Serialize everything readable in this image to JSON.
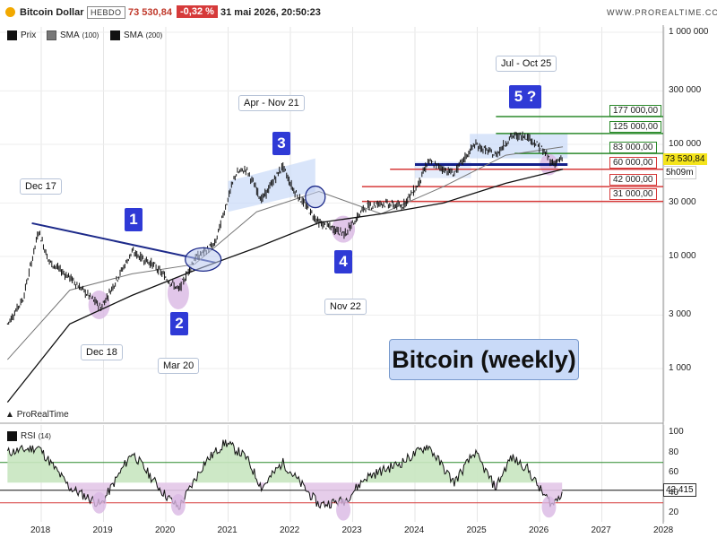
{
  "header": {
    "title": "Bitcoin Dollar",
    "period": "HEBDO",
    "price": "73 530,84",
    "change": "-0,32 %",
    "datetime": "31 mai 2026, 20:50:23",
    "site": "WWW.PROREALTIME.COM"
  },
  "legend": {
    "price": "Prix",
    "sma100_name": "SMA",
    "sma100_param": "(100)",
    "sma200_name": "SMA",
    "sma200_param": "(200)",
    "rsi_name": "RSI",
    "rsi_param": "(14)"
  },
  "watermark": "ProRealTime",
  "big_title": "Bitcoin (weekly)",
  "annotations": {
    "dec17": "Dec 17",
    "dec18": "Dec 18",
    "mar20": "Mar 20",
    "apr_nov21": "Apr - Nov 21",
    "nov22": "Nov 22",
    "jul_oct25": "Jul - Oct 25"
  },
  "waves": {
    "w1": "1",
    "w2": "2",
    "w3": "3",
    "w4": "4",
    "w5": "5 ?"
  },
  "price_tag": "73 530,84",
  "timer_tag": "5h09m",
  "rsi_tag": "42,415",
  "colors": {
    "candles": "#111111",
    "sma100": "#777777",
    "sma200": "#111111",
    "trendline": "#1d2a8a",
    "resistance": "#2b8a2b",
    "support": "#d63a3a",
    "neckline": "#14208a",
    "rsi_fill": "#c8e6c0",
    "rsi_low_fill": "#e3c8e8",
    "highlight": "#c9daf8"
  },
  "chart_data": [
    {
      "type": "line",
      "scale": "log",
      "series": [
        {
          "name": "Prix",
          "x": [
            "2017-06",
            "2017-09",
            "2017-12",
            "2018-02",
            "2018-06",
            "2018-12",
            "2019-06",
            "2019-10",
            "2020-03",
            "2020-06",
            "2020-10",
            "2020-12",
            "2021-02",
            "2021-04",
            "2021-07",
            "2021-11",
            "2022-01",
            "2022-06",
            "2022-11",
            "2023-03",
            "2023-06",
            "2023-10",
            "2024-01",
            "2024-03",
            "2024-08",
            "2024-12",
            "2025-04",
            "2025-07",
            "2025-10",
            "2026-01",
            "2026-03",
            "2026-05"
          ],
          "values": [
            2500,
            4200,
            17000,
            9000,
            6500,
            3500,
            11000,
            8500,
            5000,
            9500,
            13000,
            28000,
            55000,
            60000,
            32000,
            64000,
            40000,
            20000,
            16000,
            28000,
            30000,
            28000,
            43000,
            70000,
            55000,
            100000,
            80000,
            118000,
            120000,
            90000,
            68000,
            73530
          ]
        },
        {
          "name": "SMA (100)",
          "x": [
            "2017-06",
            "2018-06",
            "2019-06",
            "2020-06",
            "2021-06",
            "2022-06",
            "2023-06",
            "2024-06",
            "2025-06",
            "2026-05"
          ],
          "values": [
            1200,
            5000,
            7000,
            8500,
            25000,
            38000,
            24000,
            42000,
            80000,
            95000
          ]
        },
        {
          "name": "SMA (200)",
          "x": [
            "2017-06",
            "2018-06",
            "2019-06",
            "2020-06",
            "2021-06",
            "2022-06",
            "2023-06",
            "2024-06",
            "2025-06",
            "2026-05"
          ],
          "values": [
            500,
            2500,
            4500,
            7500,
            12000,
            20000,
            24000,
            30000,
            45000,
            60000
          ]
        }
      ],
      "y_ticks": [
        "1 000",
        "3 000",
        "10 000",
        "30 000",
        "100 000",
        "300 000",
        "1 000 000"
      ],
      "x_ticks": [
        "2018",
        "2019",
        "2020",
        "2021",
        "2022",
        "2023",
        "2024",
        "2025",
        "2026",
        "2027",
        "2028"
      ],
      "levels": [
        {
          "label": "177 000,00",
          "value": 177000,
          "kind": "resistance"
        },
        {
          "label": "125 000,00",
          "value": 125000,
          "kind": "resistance"
        },
        {
          "label": "83 000,00",
          "value": 83000,
          "kind": "resistance"
        },
        {
          "label": "60 000,00",
          "value": 60000,
          "kind": "support"
        },
        {
          "label": "42 000,00",
          "value": 42000,
          "kind": "support"
        },
        {
          "label": "31 000,00",
          "value": 31000,
          "kind": "support"
        }
      ],
      "grid": true
    },
    {
      "type": "line",
      "series": [
        {
          "name": "RSI (14)",
          "x": [
            "2017-06",
            "2017-12",
            "2018-06",
            "2018-12",
            "2019-06",
            "2019-12",
            "2020-03",
            "2020-08",
            "2020-12",
            "2021-04",
            "2021-07",
            "2021-11",
            "2022-06",
            "2022-11",
            "2023-03",
            "2023-10",
            "2024-03",
            "2024-08",
            "2024-12",
            "2025-04",
            "2025-07",
            "2025-10",
            "2026-01",
            "2026-03",
            "2026-05"
          ],
          "values": [
            80,
            85,
            45,
            28,
            80,
            40,
            25,
            70,
            90,
            75,
            45,
            70,
            28,
            32,
            55,
            70,
            87,
            50,
            80,
            45,
            75,
            65,
            40,
            28,
            42
          ]
        }
      ],
      "y_ticks": [
        "20",
        "40",
        "60",
        "80",
        "100"
      ],
      "levels": [
        70,
        30
      ],
      "ylim": [
        10,
        100
      ]
    }
  ]
}
